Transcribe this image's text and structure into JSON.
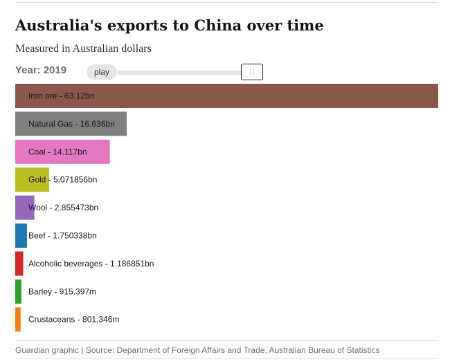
{
  "title": "Australia's exports to China over time",
  "subtitle": "Measured in Australian dollars",
  "controls": {
    "year_prefix": "Year:",
    "year": "2019",
    "play_label": "play"
  },
  "source": "Guardian graphic | Source: Department of Foreign Affairs and Trade, Australian Bureau of Statistics",
  "chart_data": {
    "type": "bar",
    "orientation": "horizontal",
    "title": "Australia's exports to China over time",
    "subtitle": "Measured in Australian dollars",
    "year": 2019,
    "unit": "AUD",
    "categories": [
      "Iron ore",
      "Natural Gas",
      "Coal",
      "Gold",
      "Wool",
      "Beef",
      "Alcoholic beverages",
      "Barley",
      "Crustaceans"
    ],
    "values": [
      63120000000,
      16636000000,
      14117000000,
      5071856000,
      2855473000,
      1750338000,
      1186851000,
      915397000,
      801346000
    ],
    "labels": [
      "Iron ore - 63.12bn",
      "Natural Gas - 16.636bn",
      "Coal - 14.117bn",
      "Gold - 5.071856bn",
      "Wool - 2.855473bn",
      "Beef - 1.750338bn",
      "Alcoholic beverages - 1.186851bn",
      "Barley - 915.397m",
      "Crustaceans - 801.346m"
    ],
    "colors": [
      "#8b574a",
      "#7f7f7f",
      "#e377c2",
      "#bcbd22",
      "#9467bd",
      "#1f77b4",
      "#d62728",
      "#2ca02c",
      "#ff7f0e"
    ],
    "xlim": [
      0,
      63120000000
    ],
    "grid": false,
    "legend": "none"
  }
}
